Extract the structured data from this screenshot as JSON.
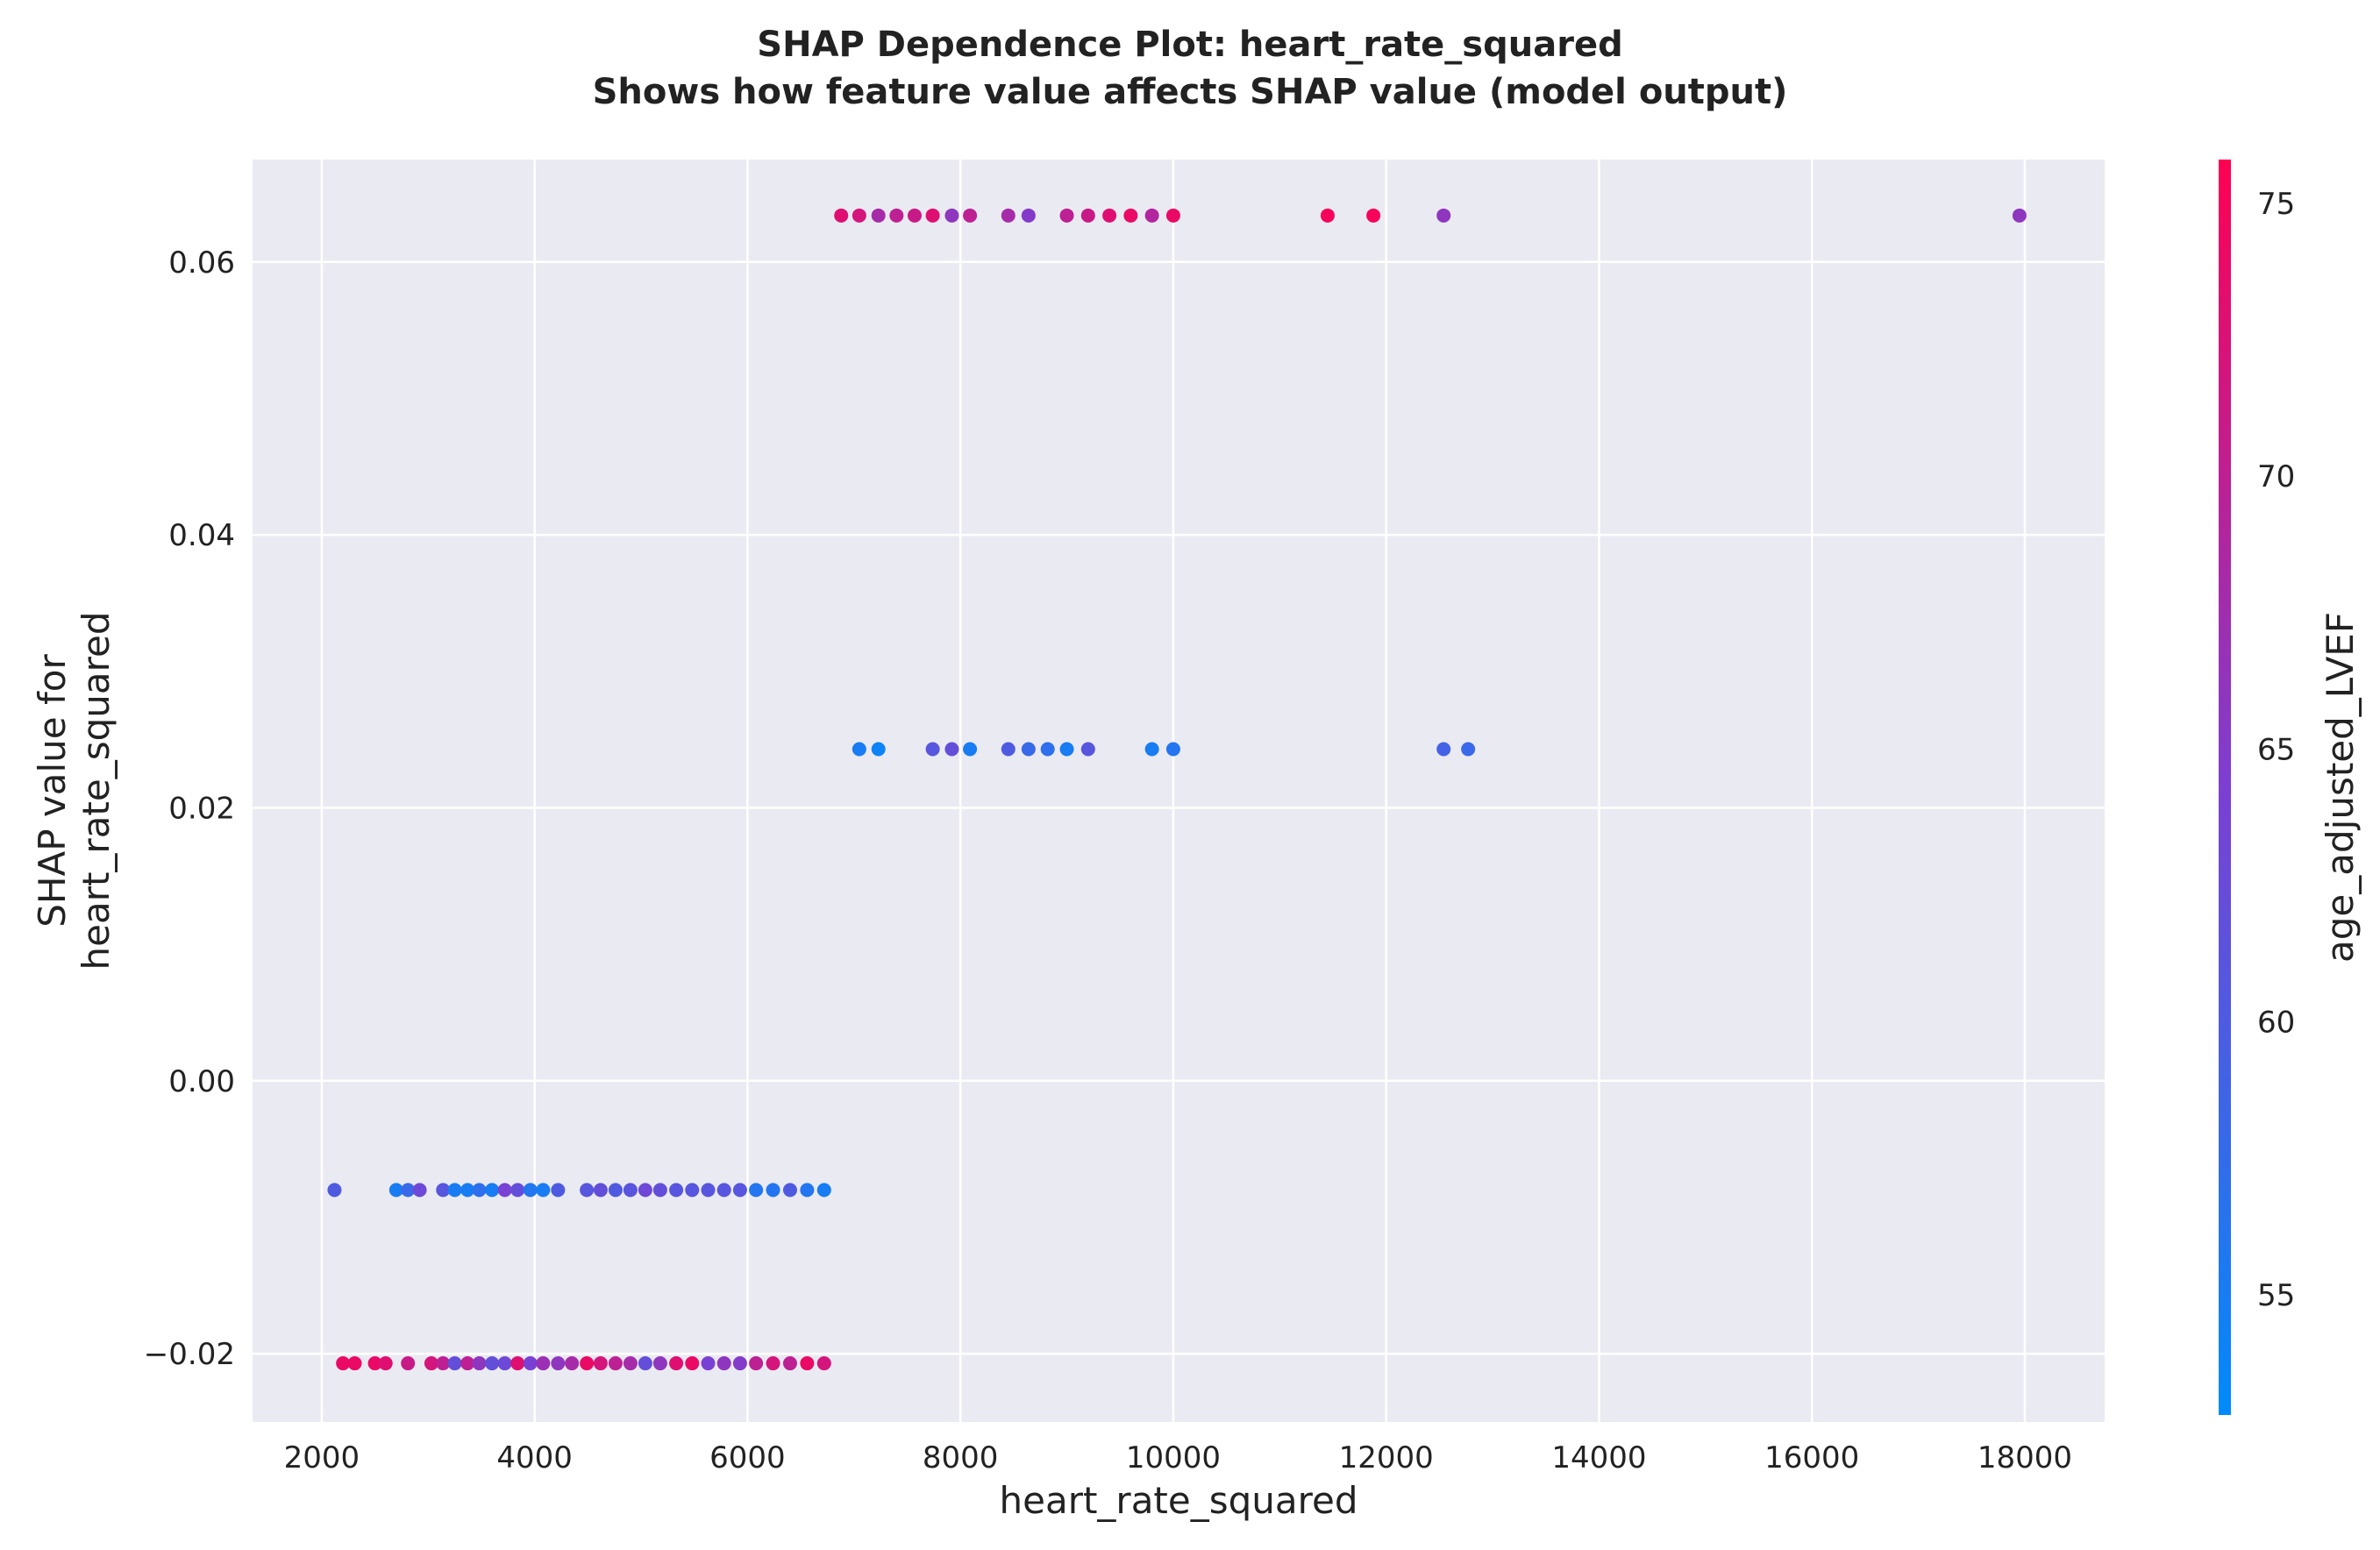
{
  "chart_data": {
    "type": "scatter",
    "title": "SHAP Dependence Plot: heart_rate_squared",
    "subtitle": "Shows how feature value affects SHAP value (model output)",
    "xlabel": "heart_rate_squared",
    "ylabel_line1": "SHAP value for",
    "ylabel_line2": "heart_rate_squared",
    "colorbar_label": "age_adjusted_LVEF",
    "xlim": [
      1350,
      18750
    ],
    "ylim": [
      -0.025,
      0.0675
    ],
    "xticks": [
      2000,
      4000,
      6000,
      8000,
      10000,
      12000,
      14000,
      16000,
      18000
    ],
    "xtick_labels": [
      "2000",
      "4000",
      "6000",
      "8000",
      "10000",
      "12000",
      "14000",
      "16000",
      "18000"
    ],
    "yticks": [
      -0.02,
      0.0,
      0.02,
      0.04,
      0.06
    ],
    "ytick_labels": [
      "−0.02",
      "0.00",
      "0.02",
      "0.04",
      "0.06"
    ],
    "colorbar_range": [
      52.8,
      75.8
    ],
    "colorbar_ticks": [
      55,
      60,
      65,
      70,
      75
    ],
    "colorbar_tick_labels": [
      "55",
      "60",
      "65",
      "70",
      "75"
    ],
    "colormap": {
      "low": "#008bfb",
      "mid": "#7c3fd2",
      "high": "#ff0052"
    },
    "background_color": "#eaeaf2",
    "grid": true,
    "points": [
      {
        "x": 6880,
        "y": 0.0634,
        "c": 73
      },
      {
        "x": 7050,
        "y": 0.0634,
        "c": 72
      },
      {
        "x": 7230,
        "y": 0.0634,
        "c": 68
      },
      {
        "x": 7400,
        "y": 0.0634,
        "c": 70
      },
      {
        "x": 7570,
        "y": 0.0634,
        "c": 71
      },
      {
        "x": 7740,
        "y": 0.0634,
        "c": 73
      },
      {
        "x": 7920,
        "y": 0.0634,
        "c": 66
      },
      {
        "x": 8090,
        "y": 0.0634,
        "c": 70
      },
      {
        "x": 8450,
        "y": 0.0634,
        "c": 68
      },
      {
        "x": 8640,
        "y": 0.0634,
        "c": 65
      },
      {
        "x": 9000,
        "y": 0.0634,
        "c": 70
      },
      {
        "x": 9200,
        "y": 0.0634,
        "c": 71
      },
      {
        "x": 9400,
        "y": 0.0634,
        "c": 73
      },
      {
        "x": 9600,
        "y": 0.0634,
        "c": 74
      },
      {
        "x": 9800,
        "y": 0.0634,
        "c": 69
      },
      {
        "x": 10000,
        "y": 0.0634,
        "c": 74
      },
      {
        "x": 11450,
        "y": 0.0634,
        "c": 75
      },
      {
        "x": 11880,
        "y": 0.0634,
        "c": 75
      },
      {
        "x": 12540,
        "y": 0.0634,
        "c": 66
      },
      {
        "x": 17950,
        "y": 0.0634,
        "c": 66
      },
      {
        "x": 7050,
        "y": 0.0243,
        "c": 55
      },
      {
        "x": 7230,
        "y": 0.0243,
        "c": 54
      },
      {
        "x": 7740,
        "y": 0.0243,
        "c": 61
      },
      {
        "x": 7920,
        "y": 0.0243,
        "c": 62
      },
      {
        "x": 8090,
        "y": 0.0243,
        "c": 55
      },
      {
        "x": 8450,
        "y": 0.0243,
        "c": 60
      },
      {
        "x": 8640,
        "y": 0.0243,
        "c": 58
      },
      {
        "x": 8820,
        "y": 0.0243,
        "c": 57
      },
      {
        "x": 9000,
        "y": 0.0243,
        "c": 55
      },
      {
        "x": 9200,
        "y": 0.0243,
        "c": 61
      },
      {
        "x": 9800,
        "y": 0.0243,
        "c": 55
      },
      {
        "x": 10000,
        "y": 0.0243,
        "c": 56
      },
      {
        "x": 12540,
        "y": 0.0243,
        "c": 59
      },
      {
        "x": 12770,
        "y": 0.0243,
        "c": 58
      },
      {
        "x": 2120,
        "y": -0.008,
        "c": 60
      },
      {
        "x": 2700,
        "y": -0.008,
        "c": 55
      },
      {
        "x": 2810,
        "y": -0.008,
        "c": 58
      },
      {
        "x": 2920,
        "y": -0.008,
        "c": 63
      },
      {
        "x": 3140,
        "y": -0.008,
        "c": 61
      },
      {
        "x": 3250,
        "y": -0.008,
        "c": 55
      },
      {
        "x": 3370,
        "y": -0.008,
        "c": 55
      },
      {
        "x": 3480,
        "y": -0.008,
        "c": 57
      },
      {
        "x": 3600,
        "y": -0.008,
        "c": 55
      },
      {
        "x": 3720,
        "y": -0.008,
        "c": 64
      },
      {
        "x": 3840,
        "y": -0.008,
        "c": 62
      },
      {
        "x": 3960,
        "y": -0.008,
        "c": 56
      },
      {
        "x": 4080,
        "y": -0.008,
        "c": 55
      },
      {
        "x": 4220,
        "y": -0.008,
        "c": 60
      },
      {
        "x": 4490,
        "y": -0.008,
        "c": 61
      },
      {
        "x": 4620,
        "y": -0.008,
        "c": 62
      },
      {
        "x": 4760,
        "y": -0.008,
        "c": 60
      },
      {
        "x": 4900,
        "y": -0.008,
        "c": 61
      },
      {
        "x": 5040,
        "y": -0.008,
        "c": 63
      },
      {
        "x": 5180,
        "y": -0.008,
        "c": 62
      },
      {
        "x": 5330,
        "y": -0.008,
        "c": 61
      },
      {
        "x": 5480,
        "y": -0.008,
        "c": 61
      },
      {
        "x": 5630,
        "y": -0.008,
        "c": 61
      },
      {
        "x": 5780,
        "y": -0.008,
        "c": 61
      },
      {
        "x": 5930,
        "y": -0.008,
        "c": 61
      },
      {
        "x": 6080,
        "y": -0.008,
        "c": 56
      },
      {
        "x": 6240,
        "y": -0.008,
        "c": 56
      },
      {
        "x": 6400,
        "y": -0.008,
        "c": 60
      },
      {
        "x": 6560,
        "y": -0.008,
        "c": 56
      },
      {
        "x": 6720,
        "y": -0.008,
        "c": 55
      },
      {
        "x": 2200,
        "y": -0.0207,
        "c": 74
      },
      {
        "x": 2310,
        "y": -0.0207,
        "c": 74
      },
      {
        "x": 2500,
        "y": -0.0207,
        "c": 74
      },
      {
        "x": 2600,
        "y": -0.0207,
        "c": 73
      },
      {
        "x": 2810,
        "y": -0.0207,
        "c": 71
      },
      {
        "x": 3030,
        "y": -0.0207,
        "c": 72
      },
      {
        "x": 3140,
        "y": -0.0207,
        "c": 70
      },
      {
        "x": 3250,
        "y": -0.0207,
        "c": 62
      },
      {
        "x": 3370,
        "y": -0.0207,
        "c": 70
      },
      {
        "x": 3480,
        "y": -0.0207,
        "c": 66
      },
      {
        "x": 3600,
        "y": -0.0207,
        "c": 62
      },
      {
        "x": 3720,
        "y": -0.0207,
        "c": 63
      },
      {
        "x": 3840,
        "y": -0.0207,
        "c": 73
      },
      {
        "x": 3960,
        "y": -0.0207,
        "c": 64
      },
      {
        "x": 4080,
        "y": -0.0207,
        "c": 67
      },
      {
        "x": 4220,
        "y": -0.0207,
        "c": 66
      },
      {
        "x": 4350,
        "y": -0.0207,
        "c": 68
      },
      {
        "x": 4490,
        "y": -0.0207,
        "c": 74
      },
      {
        "x": 4620,
        "y": -0.0207,
        "c": 72
      },
      {
        "x": 4760,
        "y": -0.0207,
        "c": 70
      },
      {
        "x": 4900,
        "y": -0.0207,
        "c": 68
      },
      {
        "x": 5040,
        "y": -0.0207,
        "c": 62
      },
      {
        "x": 5180,
        "y": -0.0207,
        "c": 66
      },
      {
        "x": 5330,
        "y": -0.0207,
        "c": 73
      },
      {
        "x": 5480,
        "y": -0.0207,
        "c": 74
      },
      {
        "x": 5630,
        "y": -0.0207,
        "c": 64
      },
      {
        "x": 5780,
        "y": -0.0207,
        "c": 66
      },
      {
        "x": 5930,
        "y": -0.0207,
        "c": 65
      },
      {
        "x": 6080,
        "y": -0.0207,
        "c": 70
      },
      {
        "x": 6240,
        "y": -0.0207,
        "c": 72
      },
      {
        "x": 6400,
        "y": -0.0207,
        "c": 70
      },
      {
        "x": 6560,
        "y": -0.0207,
        "c": 74
      },
      {
        "x": 6720,
        "y": -0.0207,
        "c": 72
      }
    ]
  }
}
